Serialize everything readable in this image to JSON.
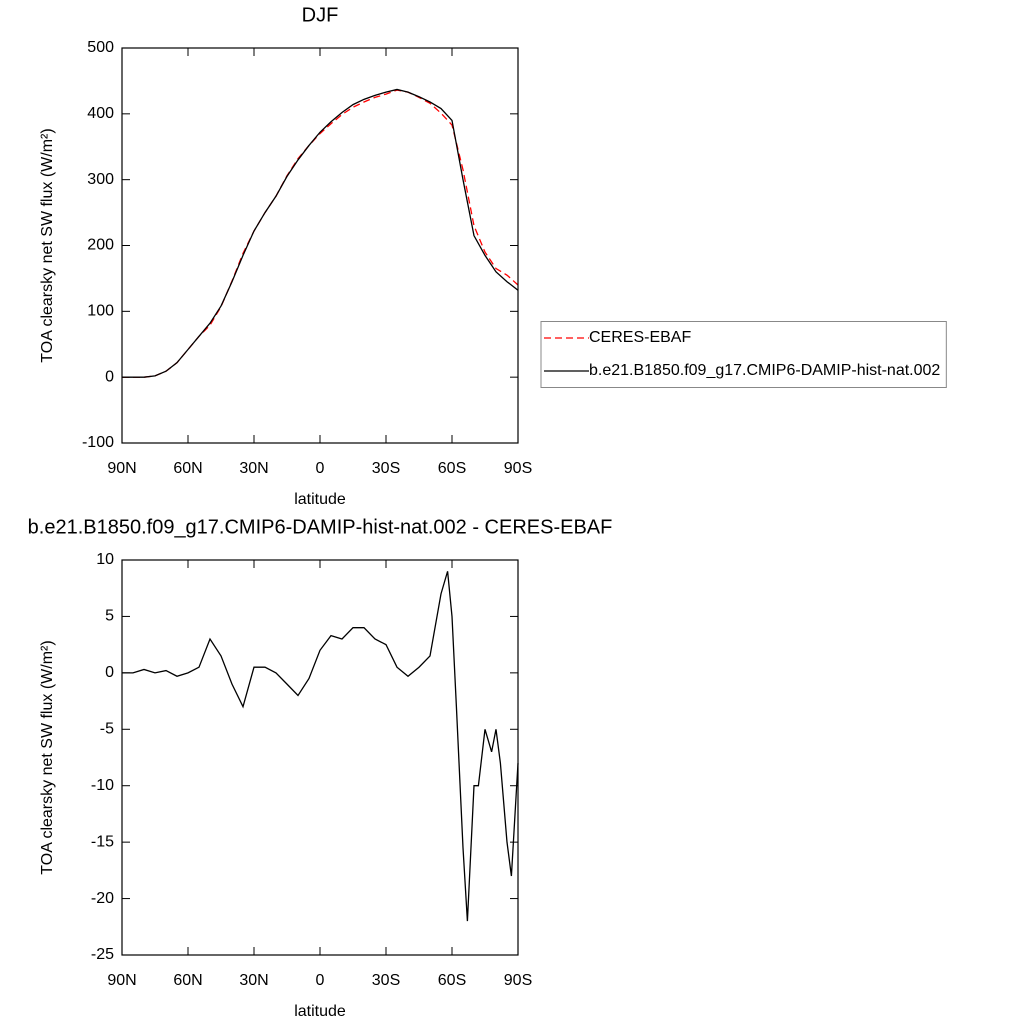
{
  "chart_data": [
    {
      "type": "line",
      "title": "DJF",
      "xlabel": "latitude",
      "ylabel": "TOA clearsky net SW flux (W/m²)",
      "x": [
        90,
        85,
        80,
        75,
        70,
        65,
        60,
        55,
        50,
        45,
        40,
        35,
        30,
        25,
        20,
        15,
        10,
        5,
        0,
        -5,
        -10,
        -15,
        -20,
        -25,
        -30,
        -35,
        -40,
        -45,
        -50,
        -55,
        -60,
        -65,
        -70,
        -75,
        -80,
        -85,
        -90
      ],
      "series": [
        {
          "name": "CERES-EBAF",
          "color": "#ff0000",
          "line_style": "dashed",
          "values": [
            0,
            0,
            0,
            2,
            9,
            22,
            42,
            62,
            79,
            107,
            146,
            188,
            222,
            250,
            275,
            306,
            332,
            352,
            370,
            385,
            399,
            410,
            418,
            425,
            430,
            436,
            433,
            425,
            416,
            401,
            383,
            315,
            230,
            190,
            165,
            155,
            140
          ]
        },
        {
          "name": "b.e21.B1850.f09_g17.CMIP6-DAMIP-hist-nat.002",
          "color": "#000000",
          "line_style": "solid",
          "values": [
            0,
            0,
            0,
            2,
            9,
            22,
            42,
            62,
            82,
            108,
            145,
            185,
            222,
            250,
            275,
            305,
            330,
            352,
            372,
            388,
            402,
            414,
            422,
            428,
            433,
            437,
            433,
            426,
            418,
            408,
            390,
            300,
            215,
            185,
            160,
            145,
            132
          ]
        }
      ],
      "xlim": [
        90,
        -90
      ],
      "xticks": [
        {
          "value": 90,
          "label": "90N"
        },
        {
          "value": 60,
          "label": "60N"
        },
        {
          "value": 30,
          "label": "30N"
        },
        0,
        {
          "value": -30,
          "label": "30S"
        },
        {
          "value": -60,
          "label": "60S"
        },
        {
          "value": -90,
          "label": "90S"
        }
      ],
      "ylim": [
        -100,
        500
      ],
      "yticks": [
        -100,
        0,
        100,
        200,
        300,
        400,
        500
      ],
      "legend": "right"
    },
    {
      "type": "line",
      "title": "b.e21.B1850.f09_g17.CMIP6-DAMIP-hist-nat.002 - CERES-EBAF",
      "xlabel": "latitude",
      "ylabel": "TOA clearsky net SW flux (W/m²)",
      "x": [
        90,
        85,
        80,
        75,
        70,
        65,
        60,
        55,
        50,
        45,
        40,
        35,
        30,
        25,
        20,
        15,
        10,
        5,
        0,
        -5,
        -10,
        -15,
        -20,
        -25,
        -30,
        -35,
        -40,
        -45,
        -50,
        -55,
        -58,
        -60,
        -62,
        -65,
        -67,
        -70,
        -72,
        -75,
        -78,
        -80,
        -82,
        -85,
        -87,
        -90
      ],
      "series": [
        {
          "color": "#000000",
          "line_style": "solid",
          "values": [
            0,
            0,
            0.3,
            0,
            0.2,
            -0.3,
            0,
            0.5,
            3,
            1.5,
            -1,
            -3,
            0.5,
            0.5,
            0,
            -1,
            -2,
            -0.5,
            2,
            3.3,
            3,
            4,
            4,
            3,
            2.5,
            0.5,
            -0.3,
            0.5,
            1.5,
            7,
            9,
            5,
            -3,
            -15.5,
            -22,
            -10,
            -10,
            -5,
            -7,
            -5,
            -8,
            -15,
            -18,
            -8
          ]
        }
      ],
      "xlim": [
        90,
        -90
      ],
      "xticks": [
        {
          "value": 90,
          "label": "90N"
        },
        {
          "value": 60,
          "label": "60N"
        },
        {
          "value": 30,
          "label": "30N"
        },
        0,
        {
          "value": -30,
          "label": "30S"
        },
        {
          "value": -60,
          "label": "60S"
        },
        {
          "value": -90,
          "label": "90S"
        }
      ],
      "ylim": [
        -25,
        10
      ],
      "yticks": [
        -25,
        -20,
        -15,
        -10,
        -5,
        0,
        5,
        10
      ]
    }
  ]
}
